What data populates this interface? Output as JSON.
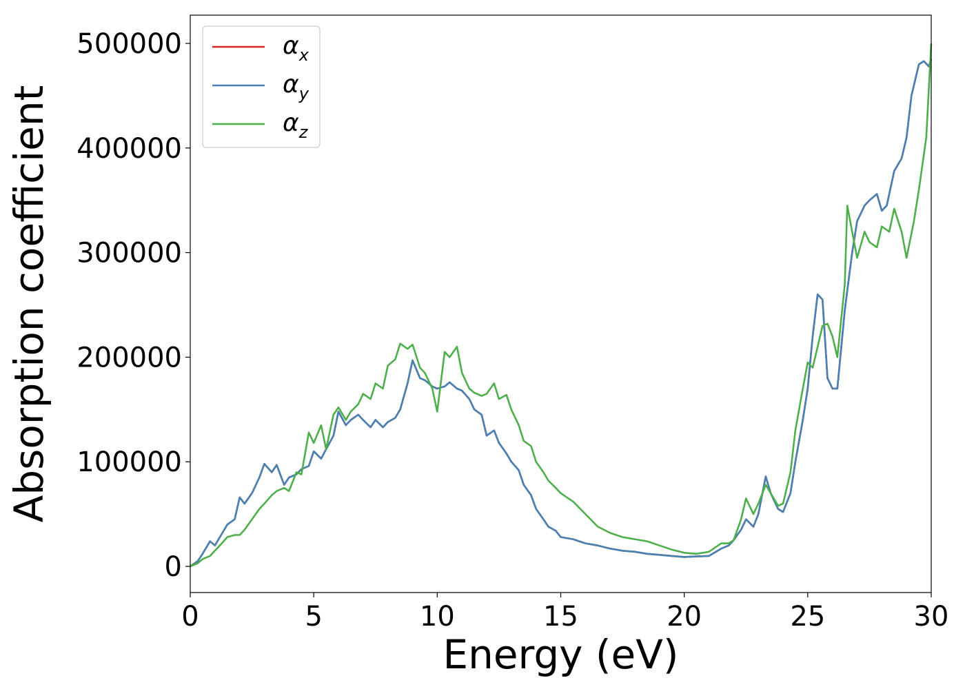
{
  "chart_data": {
    "type": "line",
    "title": "",
    "xlabel": "Energy (eV)",
    "ylabel": "Absorption coefficient",
    "xlim": [
      0,
      30
    ],
    "ylim": [
      -25000,
      527000
    ],
    "xticks": [
      "0",
      "5",
      "10",
      "15",
      "20",
      "25",
      "30"
    ],
    "yticks": [
      "0",
      "100000",
      "200000",
      "300000",
      "400000",
      "500000"
    ],
    "grid": false,
    "legend_position": "top-left",
    "series": [
      {
        "name": "α",
        "sub": "x",
        "color": "#d62728",
        "x": [
          0,
          0.3,
          0.5,
          0.8,
          1.0,
          1.2,
          1.5,
          1.8,
          2.0,
          2.2,
          2.5,
          2.8,
          3.0,
          3.3,
          3.5,
          3.8,
          4.0,
          4.3,
          4.5,
          4.8,
          5.0,
          5.3,
          5.5,
          5.8,
          6.0,
          6.3,
          6.5,
          6.8,
          7.0,
          7.3,
          7.5,
          7.8,
          8.0,
          8.3,
          8.5,
          8.8,
          9.0,
          9.3,
          9.5,
          9.8,
          10.0,
          10.3,
          10.5,
          10.8,
          11.0,
          11.3,
          11.5,
          11.8,
          12.0,
          12.3,
          12.5,
          12.8,
          13.0,
          13.3,
          13.5,
          13.8,
          14.0,
          14.3,
          14.5,
          14.8,
          15.0,
          15.5,
          16.0,
          16.5,
          17.0,
          17.5,
          18.0,
          18.5,
          19.0,
          19.5,
          20.0,
          20.5,
          21.0,
          21.5,
          21.8,
          22.0,
          22.3,
          22.5,
          22.8,
          23.0,
          23.3,
          23.5,
          23.8,
          24.0,
          24.3,
          24.5,
          24.8,
          25.0,
          25.2,
          25.4,
          25.6,
          25.8,
          26.0,
          26.2,
          26.5,
          26.8,
          27.0,
          27.3,
          27.5,
          27.8,
          28.0,
          28.2,
          28.5,
          28.8,
          29.0,
          29.2,
          29.5,
          29.7,
          29.9,
          30.0
        ],
        "y": [
          0,
          5000,
          12000,
          24000,
          20000,
          28000,
          40000,
          45000,
          66000,
          60000,
          70000,
          85000,
          98000,
          90000,
          97000,
          78000,
          85000,
          88000,
          93000,
          96000,
          110000,
          103000,
          112000,
          125000,
          148000,
          135000,
          140000,
          145000,
          140000,
          133000,
          140000,
          133000,
          138000,
          142000,
          150000,
          175000,
          197000,
          180000,
          178000,
          172000,
          170000,
          172000,
          176000,
          170000,
          168000,
          160000,
          150000,
          145000,
          125000,
          130000,
          118000,
          108000,
          100000,
          92000,
          78000,
          68000,
          55000,
          45000,
          38000,
          34000,
          28000,
          26000,
          22000,
          20000,
          17000,
          15000,
          14000,
          12000,
          11000,
          10000,
          9000,
          9500,
          10000,
          17000,
          20000,
          25000,
          35000,
          45000,
          38000,
          50000,
          86000,
          70000,
          55000,
          52000,
          70000,
          100000,
          140000,
          170000,
          220000,
          260000,
          255000,
          180000,
          170000,
          170000,
          245000,
          300000,
          330000,
          345000,
          350000,
          356000,
          340000,
          345000,
          378000,
          390000,
          410000,
          450000,
          480000,
          483000,
          478000,
          485000
        ]
      },
      {
        "name": "α",
        "sub": "y",
        "color": "#4682b4",
        "x": [
          0,
          0.3,
          0.5,
          0.8,
          1.0,
          1.2,
          1.5,
          1.8,
          2.0,
          2.2,
          2.5,
          2.8,
          3.0,
          3.3,
          3.5,
          3.8,
          4.0,
          4.3,
          4.5,
          4.8,
          5.0,
          5.3,
          5.5,
          5.8,
          6.0,
          6.3,
          6.5,
          6.8,
          7.0,
          7.3,
          7.5,
          7.8,
          8.0,
          8.3,
          8.5,
          8.8,
          9.0,
          9.3,
          9.5,
          9.8,
          10.0,
          10.3,
          10.5,
          10.8,
          11.0,
          11.3,
          11.5,
          11.8,
          12.0,
          12.3,
          12.5,
          12.8,
          13.0,
          13.3,
          13.5,
          13.8,
          14.0,
          14.3,
          14.5,
          14.8,
          15.0,
          15.5,
          16.0,
          16.5,
          17.0,
          17.5,
          18.0,
          18.5,
          19.0,
          19.5,
          20.0,
          20.5,
          21.0,
          21.5,
          21.8,
          22.0,
          22.3,
          22.5,
          22.8,
          23.0,
          23.3,
          23.5,
          23.8,
          24.0,
          24.3,
          24.5,
          24.8,
          25.0,
          25.2,
          25.4,
          25.6,
          25.8,
          26.0,
          26.2,
          26.5,
          26.8,
          27.0,
          27.3,
          27.5,
          27.8,
          28.0,
          28.2,
          28.5,
          28.8,
          29.0,
          29.2,
          29.5,
          29.7,
          29.9,
          30.0
        ],
        "y": [
          0,
          5000,
          12000,
          24000,
          20000,
          28000,
          40000,
          45000,
          66000,
          60000,
          70000,
          85000,
          98000,
          90000,
          97000,
          78000,
          85000,
          88000,
          93000,
          96000,
          110000,
          103000,
          112000,
          125000,
          148000,
          135000,
          140000,
          145000,
          140000,
          133000,
          140000,
          133000,
          138000,
          142000,
          150000,
          175000,
          197000,
          180000,
          178000,
          172000,
          170000,
          172000,
          176000,
          170000,
          168000,
          160000,
          150000,
          145000,
          125000,
          130000,
          118000,
          108000,
          100000,
          92000,
          78000,
          68000,
          55000,
          45000,
          38000,
          34000,
          28000,
          26000,
          22000,
          20000,
          17000,
          15000,
          14000,
          12000,
          11000,
          10000,
          9000,
          9500,
          10000,
          17000,
          20000,
          25000,
          35000,
          45000,
          38000,
          50000,
          86000,
          70000,
          55000,
          52000,
          70000,
          100000,
          140000,
          170000,
          220000,
          260000,
          255000,
          180000,
          170000,
          170000,
          245000,
          300000,
          330000,
          345000,
          350000,
          356000,
          340000,
          345000,
          378000,
          390000,
          410000,
          450000,
          480000,
          483000,
          478000,
          485000
        ]
      },
      {
        "name": "α",
        "sub": "z",
        "color": "#4daf4a",
        "x": [
          0,
          0.3,
          0.5,
          0.8,
          1.0,
          1.2,
          1.5,
          1.8,
          2.0,
          2.2,
          2.5,
          2.8,
          3.0,
          3.3,
          3.5,
          3.8,
          4.0,
          4.3,
          4.5,
          4.8,
          5.0,
          5.3,
          5.5,
          5.8,
          6.0,
          6.3,
          6.5,
          6.8,
          7.0,
          7.3,
          7.5,
          7.8,
          8.0,
          8.3,
          8.5,
          8.8,
          9.0,
          9.3,
          9.5,
          9.8,
          10.0,
          10.3,
          10.5,
          10.8,
          11.0,
          11.3,
          11.5,
          11.8,
          12.0,
          12.3,
          12.5,
          12.8,
          13.0,
          13.3,
          13.5,
          13.8,
          14.0,
          14.3,
          14.5,
          14.8,
          15.0,
          15.5,
          16.0,
          16.5,
          17.0,
          17.5,
          18.0,
          18.5,
          19.0,
          19.5,
          20.0,
          20.5,
          21.0,
          21.5,
          21.8,
          22.0,
          22.3,
          22.5,
          22.8,
          23.0,
          23.3,
          23.5,
          23.8,
          24.0,
          24.3,
          24.5,
          24.8,
          25.0,
          25.2,
          25.4,
          25.6,
          25.8,
          26.0,
          26.2,
          26.5,
          26.6,
          26.8,
          27.0,
          27.3,
          27.5,
          27.8,
          28.0,
          28.3,
          28.5,
          28.8,
          29.0,
          29.3,
          29.5,
          29.8,
          30.0
        ],
        "y": [
          0,
          3000,
          7000,
          10000,
          15000,
          20000,
          28000,
          30000,
          30000,
          35000,
          45000,
          55000,
          60000,
          68000,
          72000,
          75000,
          72000,
          90000,
          88000,
          128000,
          118000,
          135000,
          112000,
          145000,
          152000,
          140000,
          148000,
          155000,
          165000,
          160000,
          175000,
          170000,
          192000,
          198000,
          213000,
          208000,
          212000,
          190000,
          185000,
          170000,
          148000,
          205000,
          200000,
          210000,
          185000,
          170000,
          166000,
          163000,
          165000,
          175000,
          160000,
          164000,
          150000,
          135000,
          120000,
          115000,
          100000,
          90000,
          82000,
          75000,
          70000,
          62000,
          50000,
          38000,
          32000,
          28000,
          26000,
          24000,
          20000,
          16000,
          13000,
          12000,
          14000,
          22000,
          22000,
          25000,
          45000,
          65000,
          50000,
          60000,
          78000,
          70000,
          58000,
          60000,
          90000,
          130000,
          170000,
          195000,
          190000,
          210000,
          230000,
          232000,
          220000,
          200000,
          270000,
          345000,
          320000,
          295000,
          320000,
          310000,
          305000,
          325000,
          320000,
          342000,
          320000,
          295000,
          330000,
          360000,
          410000,
          500000
        ]
      }
    ]
  }
}
